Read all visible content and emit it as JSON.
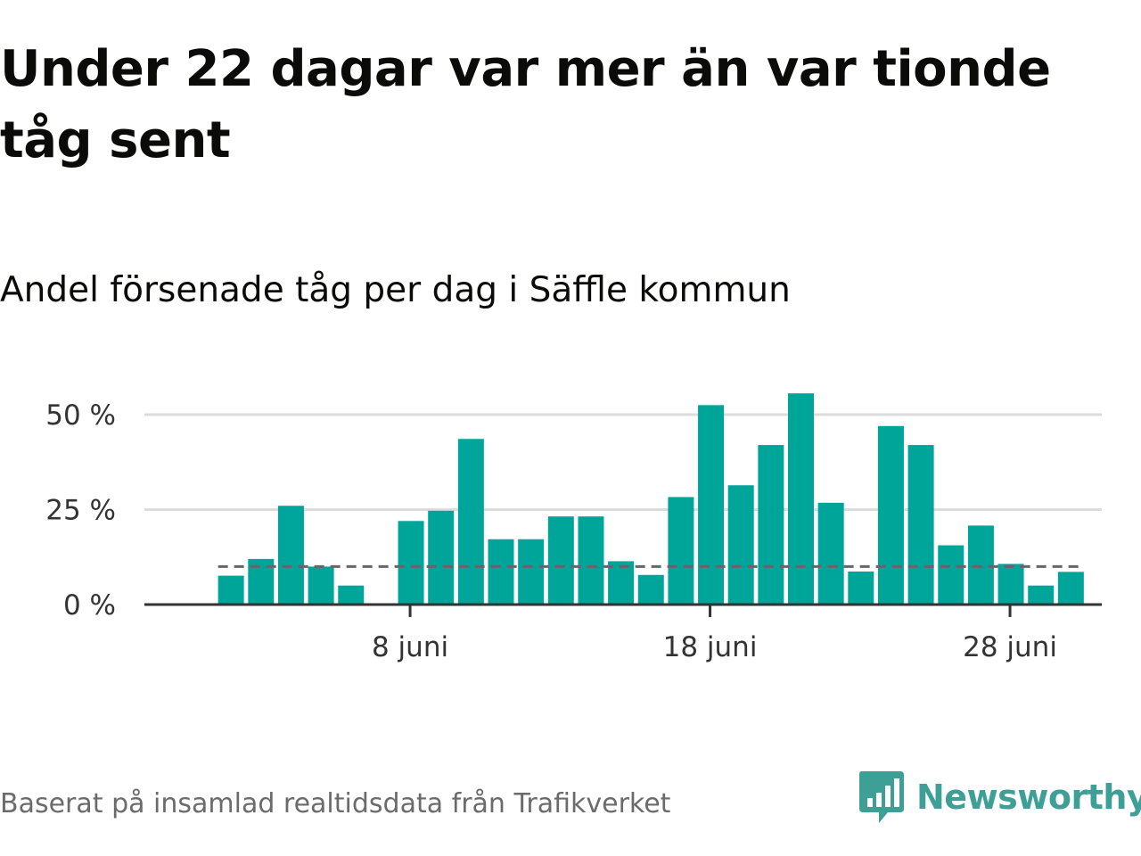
{
  "title": "Under 22 dagar var mer än var tionde tåg sent",
  "subtitle": "Andel försenade tåg per dag i Säffle kommun",
  "source": "Baserat på insamlad realtidsdata från Trafikverket",
  "brand": {
    "name": "Newsworthy",
    "icon": "newsworthy-logo-icon",
    "color": "#3d9f95"
  },
  "chart_data": {
    "type": "bar",
    "unit": "%",
    "x_start_day": 1,
    "x_end_day": 30,
    "x_ticks": [
      {
        "day": 8,
        "label": "8 juni"
      },
      {
        "day": 18,
        "label": "18 juni"
      },
      {
        "day": 28,
        "label": "28 juni"
      }
    ],
    "y_ticks": [
      {
        "value": 0,
        "label": "0 %"
      },
      {
        "value": 25,
        "label": "25 %"
      },
      {
        "value": 50,
        "label": "50 %"
      }
    ],
    "ylim": [
      0,
      50
    ],
    "reference_line": 10,
    "bar_color": "#00a59a",
    "reference_color": "#666666",
    "grid": true,
    "data": [
      {
        "day": 2,
        "value": 7.6
      },
      {
        "day": 3,
        "value": 12
      },
      {
        "day": 4,
        "value": 26
      },
      {
        "day": 5,
        "value": 10
      },
      {
        "day": 6,
        "value": 5
      },
      {
        "day": 8,
        "value": 22
      },
      {
        "day": 9,
        "value": 24.7
      },
      {
        "day": 10,
        "value": 43.6
      },
      {
        "day": 11,
        "value": 17.2
      },
      {
        "day": 12,
        "value": 17.2
      },
      {
        "day": 13,
        "value": 23.2
      },
      {
        "day": 14,
        "value": 23.2
      },
      {
        "day": 15,
        "value": 11.4
      },
      {
        "day": 16,
        "value": 7.8
      },
      {
        "day": 17,
        "value": 28.3
      },
      {
        "day": 18,
        "value": 52.5
      },
      {
        "day": 19,
        "value": 31.4
      },
      {
        "day": 20,
        "value": 42
      },
      {
        "day": 21,
        "value": 55.6
      },
      {
        "day": 22,
        "value": 26.8
      },
      {
        "day": 23,
        "value": 8.7
      },
      {
        "day": 24,
        "value": 47
      },
      {
        "day": 25,
        "value": 42
      },
      {
        "day": 26,
        "value": 15.6
      },
      {
        "day": 27,
        "value": 20.8
      },
      {
        "day": 28,
        "value": 10.7
      },
      {
        "day": 29,
        "value": 5
      },
      {
        "day": 30,
        "value": 8.6
      }
    ]
  }
}
